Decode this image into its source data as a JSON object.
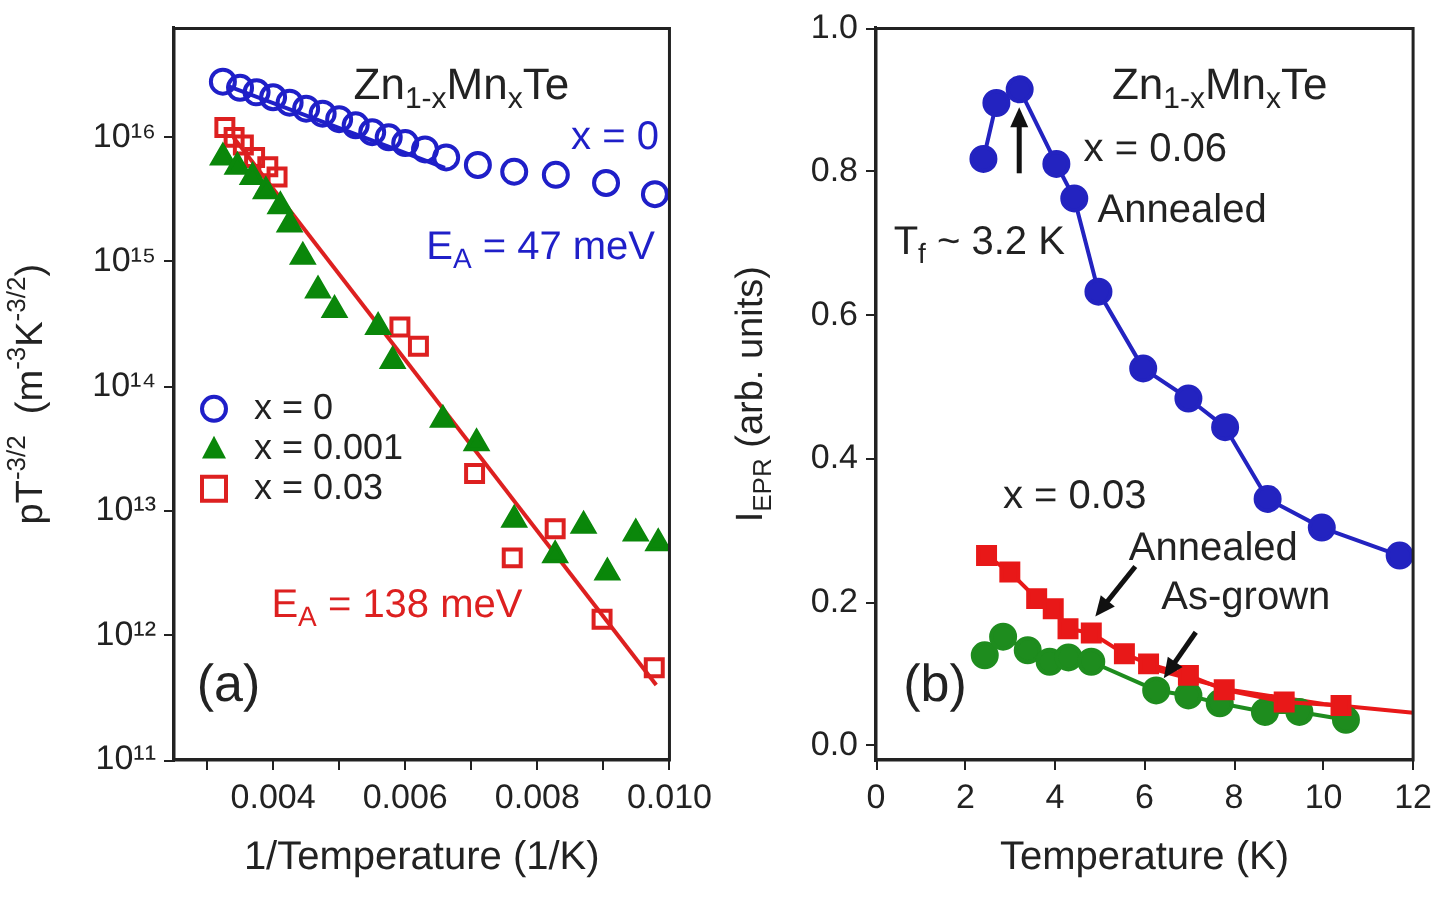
{
  "chart_data": [
    {
      "type": "scatter",
      "xlabel": "1/Temperature (1/K)",
      "ylabel": "pT$^{-3/2}$  (m$^{-3}$K$^{-3/2}$)",
      "log": "y",
      "legend": "left",
      "grid": false,
      "xlim": [
        0.0025,
        0.01
      ],
      "xticks": [
        {
          "value": 0.003,
          "label": null
        },
        0.004,
        {
          "value": 0.005,
          "label": null
        },
        0.006,
        {
          "value": 0.007,
          "label": null
        },
        0.008,
        {
          "value": 0.009,
          "label": null
        },
        {
          "value": 0.01,
          "label": "0.010"
        }
      ],
      "ylim": [
        100000000000.0,
        7.5e+16
      ],
      "yticks": [
        {
          "value": 100000000000.0,
          "label": "10¹¹"
        },
        {
          "value": 1000000000000.0,
          "label": "10¹²"
        },
        {
          "value": 10000000000000.0,
          "label": "10¹³"
        },
        {
          "value": 100000000000000.0,
          "label": "10¹⁴"
        },
        {
          "value": 1000000000000000.0,
          "label": "10¹⁵"
        },
        {
          "value": 1e+16,
          "label": "10¹⁶"
        }
      ],
      "series": [
        {
          "name": "x = 0",
          "color": "#1f1fc8",
          "marker": "circle",
          "x": [
            0.00324,
            0.0035,
            0.00375,
            0.004,
            0.00425,
            0.0045,
            0.00475,
            0.005,
            0.00525,
            0.0055,
            0.00575,
            0.006,
            0.0063,
            0.00662,
            0.0071,
            0.00765,
            0.00828,
            0.00904,
            0.00978
          ],
          "values": [
            2.8e+16,
            2.5e+16,
            2.3e+16,
            2.1e+16,
            1.9e+16,
            1.7e+16,
            1.55e+16,
            1.4e+16,
            1.25e+16,
            1.1e+16,
            1e+16,
            9000000000000000.0,
            8000000000000000.0,
            6900000000000000.0,
            6000000000000000.0,
            5300000000000000.0,
            5000000000000000.0,
            4300000000000000.0,
            3500000000000000.0
          ]
        },
        {
          "name": "x = 0.001",
          "color": "#0a870a",
          "marker": "triangle",
          "x": [
            0.00324,
            0.00346,
            0.00369,
            0.00389,
            0.00411,
            0.00425,
            0.00445,
            0.00468,
            0.00493,
            0.00559,
            0.00581,
            0.00657,
            0.00708,
            0.00765,
            0.00827,
            0.0087,
            0.00906,
            0.00949,
            0.00983
          ],
          "values": [
            6900000000000000.0,
            5800000000000000.0,
            4800000000000000.0,
            3700000000000000.0,
            2800000000000000.0,
            2000000000000000.0,
            1100000000000000.0,
            590000000000000.0,
            410000000000000.0,
            300000000000000.0,
            160000000000000.0,
            54000000000000.0,
            35000000000000.0,
            8500000000000.0,
            4400000000000.0,
            7600000000000.0,
            3200000000000.0,
            6600000000000.0,
            5500000000000.0
          ]
        },
        {
          "name": "x = 0.03",
          "color": "#dd2020",
          "marker": "square",
          "x": [
            0.00327,
            0.00341,
            0.00355,
            0.00372,
            0.00392,
            0.00406,
            0.00592,
            0.0062,
            0.00705,
            0.00762,
            0.00827,
            0.00898,
            0.00977
          ],
          "values": [
            1.2e+16,
            1e+16,
            8700000000000000.0,
            6900000000000000.0,
            5800000000000000.0,
            4800000000000000.0,
            300000000000000.0,
            210000000000000.0,
            20000000000000.0,
            4200000000000.0,
            7200000000000.0,
            1350000000000.0,
            550000000000.0
          ]
        },
        {
          "type": "line",
          "color": "#1f1fc8",
          "marker": "none",
          "x": [
            0.0033,
            0.0066
          ],
          "values": [
            2.6e+16,
            5700000000000000.0
          ]
        },
        {
          "type": "line",
          "color": "#dd2020",
          "marker": "none",
          "x": [
            0.0034,
            0.0098
          ],
          "values": [
            1e+16,
            400000000000.0
          ]
        }
      ],
      "annotations": [
        "Zn$_{1-x}$Mn$_{x}$Te",
        "x = 0",
        "E$_{A}$ = 47 meV",
        "E$_{A}$ = 138 meV",
        "(a)"
      ]
    },
    {
      "type": "line",
      "xlabel": "Temperature (K)",
      "ylabel": "I$_{EPR}$ (arb. units)",
      "grid": false,
      "xlim": [
        0,
        12
      ],
      "xticks": [
        0,
        2,
        4,
        6,
        8,
        10,
        12
      ],
      "ylim": [
        -0.02,
        1.0
      ],
      "yticks": [
        {
          "value": 0,
          "label": "0.0"
        },
        0.2,
        0.4,
        0.6,
        0.8,
        {
          "value": 1,
          "label": "1.0"
        }
      ],
      "series": [
        {
          "color": "#2323c0",
          "marker": "circle",
          "x": [
            2.4,
            2.69,
            3.21,
            4.03,
            4.43,
            4.97,
            5.97,
            6.98,
            7.8,
            8.75,
            9.96,
            11.7
          ],
          "values": [
            0.818,
            0.896,
            0.915,
            0.811,
            0.763,
            0.633,
            0.526,
            0.484,
            0.444,
            0.344,
            0.304,
            0.265
          ]
        },
        {
          "color": "#e81818",
          "marker": "square",
          "x": [
            2.47,
            2.99,
            3.59,
            3.96,
            4.29,
            4.81,
            5.55,
            6.09,
            6.98,
            7.78,
            9.12,
            10.39
          ],
          "values": [
            0.265,
            0.242,
            0.205,
            0.191,
            0.163,
            0.157,
            0.128,
            0.114,
            0.098,
            0.078,
            0.061,
            0.056
          ]
        },
        {
          "color": "#1e8c1e",
          "marker": "circle",
          "x": [
            2.43,
            2.84,
            3.39,
            3.88,
            4.3,
            4.81,
            6.26,
            6.98,
            7.68,
            8.69,
            9.46,
            10.5
          ],
          "values": [
            0.126,
            0.152,
            0.133,
            0.117,
            0.123,
            0.117,
            0.077,
            0.07,
            0.059,
            0.047,
            0.047,
            0.036
          ]
        },
        {
          "color": "#e81818",
          "marker": "none",
          "x": [
            6,
            8,
            10,
            12
          ],
          "values": [
            0.11,
            0.077,
            0.058,
            0.046
          ]
        }
      ],
      "annotations": [
        "Zn$_{1-x}$Mn$_{x}$Te",
        "x = 0.06",
        "Annealed",
        {
          "text": "T$_{f}$ ~ 3.2 K",
          "x": 3.2,
          "y": 0.89
        },
        "x = 0.03",
        {
          "text": "Annealed",
          "x": 4.9,
          "y": 0.18
        },
        {
          "text": "As-grown",
          "x": 6.43,
          "y": 0.094
        },
        "(b)"
      ]
    }
  ]
}
